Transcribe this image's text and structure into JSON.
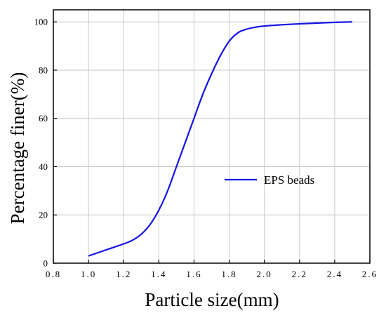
{
  "chart_data": {
    "type": "line",
    "xlabel": "Particle size(mm)",
    "ylabel": "Percentage finer(%)",
    "xlim": [
      0.8,
      2.6
    ],
    "ylim": [
      0,
      105
    ],
    "xticks": [
      "0.8",
      "1.0",
      "1.2",
      "1.4",
      "1.6",
      "1.8",
      "2.0",
      "2.2",
      "2.4",
      "2.6"
    ],
    "yticks": [
      "0",
      "20",
      "40",
      "60",
      "80",
      "100"
    ],
    "grid": true,
    "legend_position": "center-right",
    "series": [
      {
        "name": "EPS beads",
        "color": "#1414e6",
        "x": [
          1.0,
          1.1,
          1.2,
          1.25,
          1.3,
          1.35,
          1.4,
          1.45,
          1.5,
          1.55,
          1.6,
          1.65,
          1.7,
          1.75,
          1.8,
          1.85,
          1.9,
          1.95,
          2.0,
          2.1,
          2.2,
          2.3,
          2.4,
          2.5
        ],
        "y": [
          3,
          5.5,
          8,
          9.5,
          12,
          16,
          22,
          30,
          40,
          50,
          60,
          70,
          78.5,
          86,
          92,
          95.5,
          97,
          97.8,
          98.3,
          98.8,
          99.2,
          99.5,
          99.8,
          100
        ]
      }
    ]
  }
}
